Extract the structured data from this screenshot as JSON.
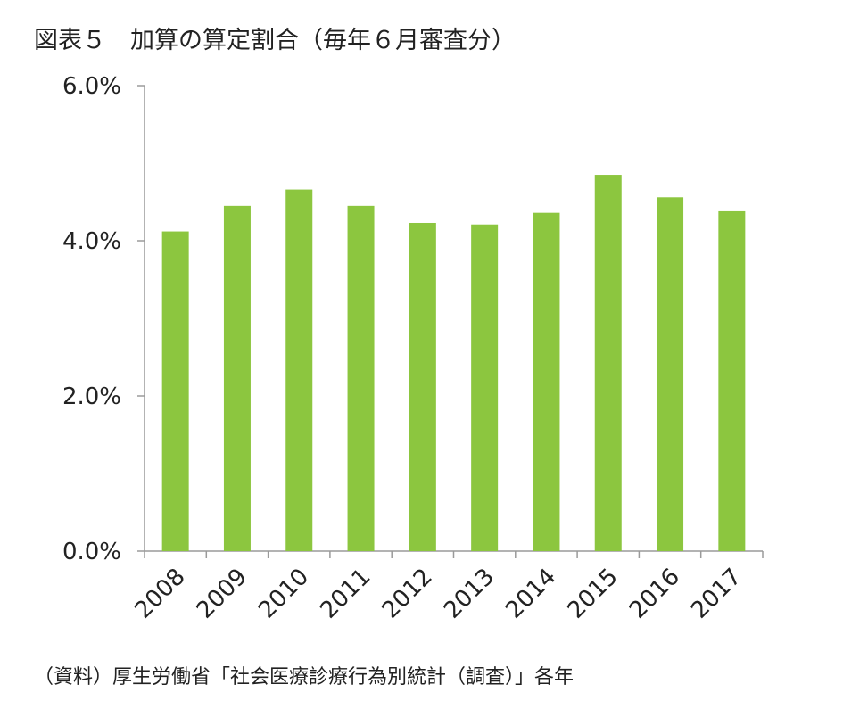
{
  "chart_data": {
    "type": "bar",
    "title": "図表５　加算の算定割合（毎年６月審査分）",
    "categories": [
      "2008",
      "2009",
      "2010",
      "2011",
      "2012",
      "2013",
      "2014",
      "2015",
      "2016",
      "2017"
    ],
    "values": [
      4.12,
      4.45,
      4.66,
      4.45,
      4.23,
      4.21,
      4.36,
      4.85,
      4.56,
      4.38
    ],
    "ylim": [
      0,
      6
    ],
    "yticks": [
      0,
      2,
      4,
      6
    ],
    "ytick_labels": [
      "0.0%",
      "2.0%",
      "4.0%",
      "6.0%"
    ],
    "xlabel": "",
    "ylabel": "",
    "grid": false,
    "bar_color": "#8cc63f",
    "source": "（資料）厚生労働省「社会医療診療行為別統計（調査）」各年"
  }
}
